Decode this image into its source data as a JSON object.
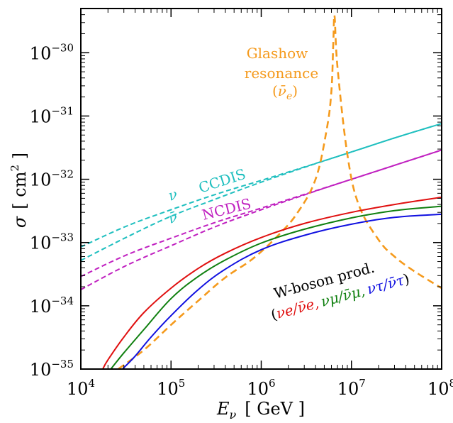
{
  "chart_data": {
    "type": "line",
    "xlabel": {
      "symbol": "E",
      "subscript": "ν",
      "unit": "[ GeV ]"
    },
    "ylabel": {
      "symbol": "σ",
      "unit_open": "[ cm",
      "unit_exp": "2",
      "unit_close": " ]"
    },
    "xscale": "log",
    "yscale": "log",
    "xlim": [
      10000,
      100000000
    ],
    "ylim": [
      1e-35,
      5e-30
    ],
    "grid": false,
    "legend": "none",
    "x_ticks": [
      {
        "value": 10000,
        "base": "10",
        "exp": "4"
      },
      {
        "value": 100000,
        "base": "10",
        "exp": "5"
      },
      {
        "value": 1000000,
        "base": "10",
        "exp": "6"
      },
      {
        "value": 10000000,
        "base": "10",
        "exp": "7"
      },
      {
        "value": 100000000,
        "base": "10",
        "exp": "8"
      }
    ],
    "y_ticks": [
      {
        "value": 1e-35,
        "base": "10",
        "exp": "−35"
      },
      {
        "value": 1e-34,
        "base": "10",
        "exp": "−34"
      },
      {
        "value": 1e-33,
        "base": "10",
        "exp": "−33"
      },
      {
        "value": 1e-32,
        "base": "10",
        "exp": "−32"
      },
      {
        "value": 1e-31,
        "base": "10",
        "exp": "−31"
      },
      {
        "value": 1e-30,
        "base": "10",
        "exp": "−30"
      }
    ],
    "series": [
      {
        "id": "ccdis-nu",
        "color": "#1fbfbf",
        "dash": true,
        "x": [
          10000,
          31600,
          100000,
          316000,
          1000000,
          3160000,
          10000000,
          31600000,
          100000000
        ],
        "y": [
          8.5e-34,
          1.8e-33,
          3.3e-33,
          5.8e-33,
          9.6e-33,
          1.6e-32,
          2.7e-32,
          4.6e-32,
          7.6e-32
        ]
      },
      {
        "id": "ccdis-nubar",
        "color": "#1fbfbf",
        "dash": true,
        "x": [
          10000,
          31600,
          100000,
          316000,
          1000000,
          3160000,
          10000000,
          31600000,
          100000000
        ],
        "y": [
          5.2e-34,
          1.2e-33,
          2.6e-33,
          4.9e-33,
          9e-33,
          1.58e-32,
          2.7e-32,
          4.6e-32,
          7.6e-32
        ]
      },
      {
        "id": "ncdis-nu",
        "color": "#c020c0",
        "dash": true,
        "x": [
          10000,
          31600,
          100000,
          316000,
          1000000,
          3160000,
          10000000,
          31600000,
          100000000
        ],
        "y": [
          2.9e-34,
          6.3e-34,
          1.17e-33,
          2.1e-33,
          3.5e-33,
          5.9e-33,
          1e-32,
          1.7e-32,
          2.9e-32
        ]
      },
      {
        "id": "ncdis-nubar",
        "color": "#c020c0",
        "dash": true,
        "x": [
          10000,
          31600,
          100000,
          316000,
          1000000,
          3160000,
          10000000,
          31600000,
          100000000
        ],
        "y": [
          1.8e-34,
          4.3e-34,
          8.9e-34,
          1.8e-33,
          3.3e-33,
          5.8e-33,
          1e-32,
          1.7e-32,
          2.9e-32
        ]
      },
      {
        "id": "glashow",
        "color": "#f59a1c",
        "dash": true,
        "x": [
          26000,
          50000,
          100000,
          200000,
          400000,
          800000,
          1500000,
          2500000,
          4000000,
          5300000,
          6000000,
          6300000,
          6500000,
          7000000,
          9000000,
          12000000,
          20000000,
          30000000,
          50000000,
          100000000
        ],
        "y": [
          1e-35,
          2e-35,
          5e-35,
          1.2e-34,
          2.8e-34,
          5.5e-34,
          1.25e-33,
          2.9e-33,
          1e-32,
          6e-32,
          2.5e-31,
          1.5e-30,
          3.8e-30,
          6e-31,
          2.5e-32,
          4e-33,
          1.1e-33,
          6e-34,
          3.5e-34,
          1.9e-34
        ]
      },
      {
        "id": "wboson-e",
        "color": "#e01010",
        "dash": false,
        "x": [
          17500,
          20000,
          30000,
          50000,
          100000,
          200000,
          400000,
          1000000,
          3000000,
          10000000,
          30000000,
          100000000
        ],
        "y": [
          1e-35,
          1.4e-35,
          3.2e-35,
          7.8e-35,
          1.9e-34,
          3.9e-34,
          6.8e-34,
          1.2e-33,
          2e-33,
          3e-33,
          4e-33,
          5.2e-33
        ]
      },
      {
        "id": "wboson-mu",
        "color": "#108010",
        "dash": false,
        "x": [
          21500,
          30000,
          50000,
          100000,
          200000,
          400000,
          1000000,
          3000000,
          10000000,
          30000000,
          100000000
        ],
        "y": [
          1e-35,
          1.8e-35,
          4.2e-35,
          1.3e-34,
          2.9e-34,
          5.3e-34,
          9.8e-34,
          1.62e-33,
          2.45e-33,
          3.2e-33,
          3.75e-33
        ]
      },
      {
        "id": "wboson-tau",
        "color": "#1010e0",
        "dash": false,
        "x": [
          29000,
          40000,
          60000,
          100000,
          200000,
          400000,
          1000000,
          3000000,
          10000000,
          30000000,
          100000000
        ],
        "y": [
          1e-35,
          1.6e-35,
          3.2e-35,
          7e-35,
          1.8e-34,
          3.8e-34,
          7.7e-34,
          1.3e-33,
          1.95e-33,
          2.5e-33,
          2.8e-33
        ]
      }
    ]
  },
  "annotations": {
    "glashow": {
      "line1": "Glashow",
      "line2": "resonance",
      "line3_open": "(",
      "line3_sym": "ν̄",
      "line3_sub": "e",
      "line3_close": ")",
      "color": "#f59a1c"
    },
    "ccdis": {
      "text": "CCDIS",
      "color": "#1fbfbf"
    },
    "ncdis": {
      "text": "NCDIS",
      "color": "#c020c0"
    },
    "nu": {
      "text": "ν",
      "color": "#1fbfbf"
    },
    "nubar": {
      "text": "ν̄",
      "color": "#1fbfbf"
    },
    "wboson": {
      "title": "W-boson prod.",
      "open": "(",
      "e_pair": "νe/ν̄e,",
      "mu_pair": "νμ/ν̄μ,",
      "tau_pair": "ντ/ν̄τ",
      "close": ")",
      "black": "#000000",
      "red": "#e01010",
      "green": "#108010",
      "blue": "#1010e0"
    }
  }
}
